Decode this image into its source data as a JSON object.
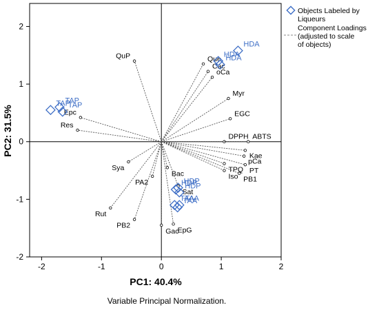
{
  "chart_data": {
    "type": "scatter",
    "subtype": "biplot",
    "xlabel": "PC1: 40.4%",
    "ylabel": "PC2: 31.5%",
    "caption": "Variable Principal Normalization.",
    "xlim": [
      -2.2,
      2.0
    ],
    "ylim": [
      -2.0,
      2.4
    ],
    "xticks": [
      "-2",
      "-1",
      "0",
      "1",
      "2"
    ],
    "yticks": [
      "-2",
      "-1",
      "0",
      "1",
      "2"
    ],
    "reference_lines": [
      0,
      0
    ],
    "legend": {
      "position": "top-right",
      "objects_label": "Objects Labeled by Liqueurs",
      "loadings_label": "Component Loadings (adjusted to scale of objects)"
    },
    "colors": {
      "objects": "#3f6fc6",
      "loadings": "#555555",
      "frame": "#000000"
    },
    "objects": [
      {
        "label": "TAP",
        "x": -1.85,
        "y": 0.55
      },
      {
        "label": "TAP",
        "x": -1.7,
        "y": 0.6
      },
      {
        "label": "TAP",
        "x": -1.65,
        "y": 0.52
      },
      {
        "label": "HDA",
        "x": 1.28,
        "y": 1.58
      },
      {
        "label": "HDA",
        "x": 0.95,
        "y": 1.4
      },
      {
        "label": "HDA",
        "x": 0.98,
        "y": 1.34
      },
      {
        "label": "HDP",
        "x": 0.28,
        "y": -0.8
      },
      {
        "label": "HDP",
        "x": 0.3,
        "y": -0.88
      },
      {
        "label": "HDP",
        "x": 0.24,
        "y": -0.83
      },
      {
        "label": "TAA",
        "x": 0.3,
        "y": -1.1
      },
      {
        "label": "TAA",
        "x": 0.27,
        "y": -1.14
      },
      {
        "label": "TAA",
        "x": 0.22,
        "y": -1.1
      }
    ],
    "loadings": [
      {
        "label": "QuP",
        "x": -0.45,
        "y": 1.4
      },
      {
        "label": "Que",
        "x": 0.7,
        "y": 1.35
      },
      {
        "label": "Cac",
        "x": 0.78,
        "y": 1.22
      },
      {
        "label": "oCa",
        "x": 0.85,
        "y": 1.12
      },
      {
        "label": "Myr",
        "x": 1.12,
        "y": 0.75
      },
      {
        "label": "EGC",
        "x": 1.15,
        "y": 0.4
      },
      {
        "label": "Epc",
        "x": -1.35,
        "y": 0.42
      },
      {
        "label": "Res",
        "x": -1.4,
        "y": 0.2
      },
      {
        "label": "DPPH",
        "x": 1.05,
        "y": 0.0
      },
      {
        "label": "Kae",
        "x": 1.4,
        "y": -0.15
      },
      {
        "label": "ABTS",
        "x": 1.45,
        "y": 0.0
      },
      {
        "label": "pCa",
        "x": 1.38,
        "y": -0.25
      },
      {
        "label": "TPQ",
        "x": 1.05,
        "y": -0.38
      },
      {
        "label": "PT",
        "x": 1.4,
        "y": -0.4
      },
      {
        "label": "PB1",
        "x": 1.3,
        "y": -0.55
      },
      {
        "label": "Iso",
        "x": 1.05,
        "y": -0.5
      },
      {
        "label": "Sya",
        "x": -0.55,
        "y": -0.35
      },
      {
        "label": "Bac",
        "x": 0.1,
        "y": -0.45
      },
      {
        "label": "PA2",
        "x": -0.15,
        "y": -0.6
      },
      {
        "label": "Sat",
        "x": 0.28,
        "y": -0.77
      },
      {
        "label": "Rut",
        "x": -0.85,
        "y": -1.15
      },
      {
        "label": "PB2",
        "x": -0.45,
        "y": -1.35
      },
      {
        "label": "Gac",
        "x": 0.0,
        "y": -1.45
      },
      {
        "label": "EpG",
        "x": 0.2,
        "y": -1.43
      }
    ]
  }
}
